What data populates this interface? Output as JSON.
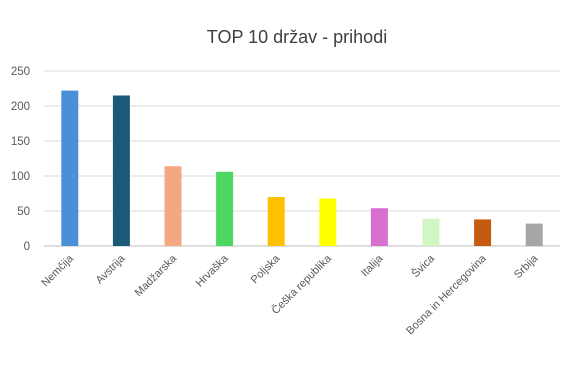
{
  "chart_data": {
    "type": "bar",
    "title": "TOP 10 držav - prihodi",
    "categories": [
      "Nemčija",
      "Avstrija",
      "Madžarska",
      "Hrvaška",
      "Poljska",
      "Češka republika",
      "Italija",
      "Švica",
      "Bosna in Hercegovina",
      "Srbija"
    ],
    "values": [
      222,
      215,
      114,
      106,
      70,
      68,
      54,
      39,
      38,
      32
    ],
    "colors": [
      "#4a90d9",
      "#1a5a78",
      "#f4a882",
      "#4cd662",
      "#ffc000",
      "#ffff00",
      "#d86fd1",
      "#d2f5c4",
      "#c55a11",
      "#a6a6a6"
    ],
    "yticks": [
      "0",
      "50",
      "100",
      "150",
      "200",
      "250"
    ],
    "ylim": [
      0,
      250
    ],
    "grid": true,
    "legend": "none"
  }
}
